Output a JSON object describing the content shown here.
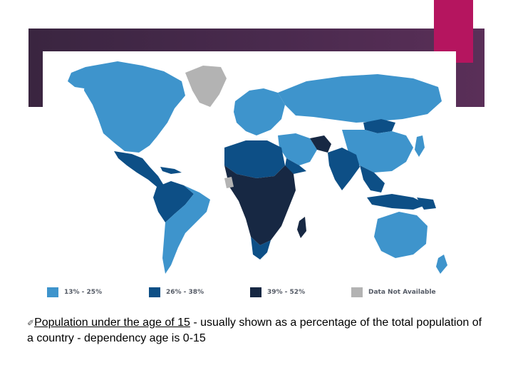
{
  "theme": {
    "header_band": "#3f2645",
    "accent_bar": "#b5155f",
    "ocean": "#ffffff"
  },
  "legend": [
    {
      "label": "13% - 25%",
      "color": "#3e94cc"
    },
    {
      "label": "26% - 38%",
      "color": "#0d4f86"
    },
    {
      "label": "39% - 52%",
      "color": "#172843"
    },
    {
      "label": "Data Not Available",
      "color": "#b3b3b3"
    }
  ],
  "caption": {
    "icon": "pencil-icon",
    "icon_glyph": "✐",
    "underlined_prefix": "Population under the age of 15",
    "text": " - usually shown as a percentage of the total population of a country - dependency age is 0-15"
  }
}
